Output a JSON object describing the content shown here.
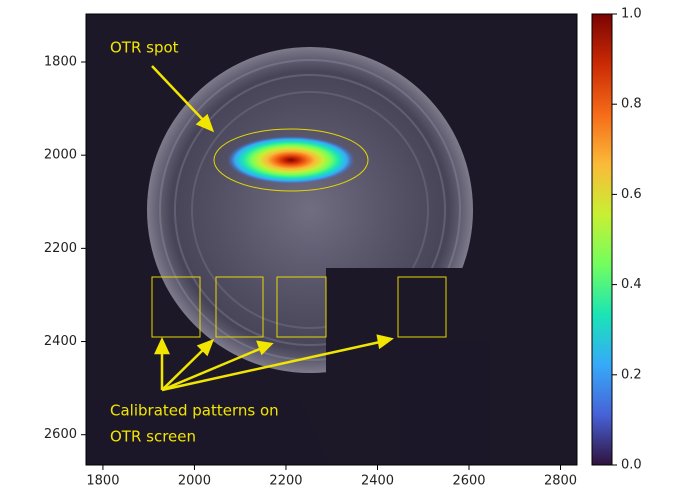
{
  "chart_data": {
    "type": "image",
    "xlim": [
      1763,
      2836
    ],
    "xticks": [
      1800,
      2000,
      2200,
      2400,
      2600,
      2800
    ],
    "ylim": [
      2665,
      1697
    ],
    "yticks": [
      1800,
      2000,
      2200,
      2400,
      2600
    ],
    "clim": [
      0,
      1
    ],
    "cticks": [
      {
        "value": 0,
        "label": "0.0"
      },
      0.2,
      0.4,
      0.6,
      0.8,
      {
        "value": 1,
        "label": "1.0"
      }
    ],
    "colormap": [
      "#30123b",
      "#4662d7",
      "#36aaf9",
      "#1ae4b6",
      "#72fe5e",
      "#c8ef34",
      "#faba39",
      "#f66b19",
      "#ca2a04",
      "#7a0403"
    ],
    "annotations": [
      "OTR spot",
      "Calibrated patterns on",
      "OTR screen"
    ]
  }
}
